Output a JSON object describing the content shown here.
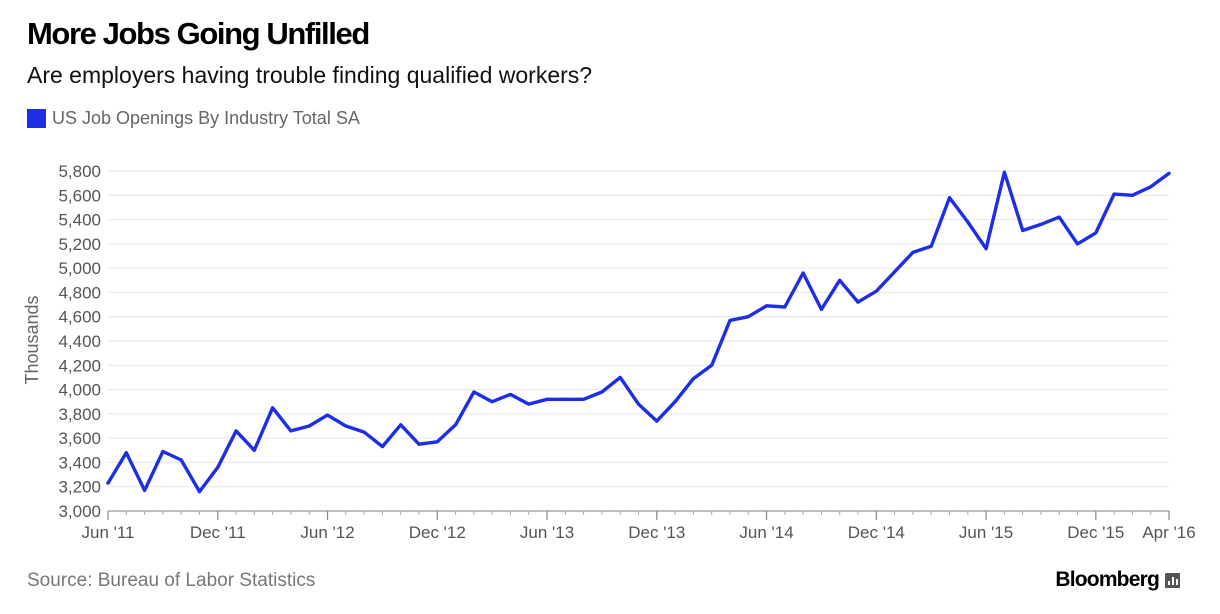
{
  "header": {
    "title": "More Jobs Going Unfilled",
    "subtitle": "Are employers having trouble finding qualified workers?"
  },
  "legend": {
    "label": "US Job Openings By Industry Total SA",
    "color": "#1c2ee6"
  },
  "footer": {
    "source": "Source: Bureau of Labor Statistics",
    "brand": "Bloomberg",
    "brand_icon": "bloomberg-chart-icon"
  },
  "chart_data": {
    "type": "line",
    "ylabel": "Thousands",
    "xlabel": "",
    "ylim": [
      3000,
      5800
    ],
    "yticks": [
      3000,
      3200,
      3400,
      3600,
      3800,
      4000,
      4200,
      4400,
      4600,
      4800,
      5000,
      5200,
      5400,
      5600,
      5800
    ],
    "ytick_labels": [
      "3,000",
      "3,200",
      "3,400",
      "3,600",
      "3,800",
      "4,000",
      "4,200",
      "4,400",
      "4,600",
      "4,800",
      "5,000",
      "5,200",
      "5,400",
      "5,600",
      "5,800"
    ],
    "xticks": [
      "Jun '11",
      "Dec '11",
      "Jun '12",
      "Dec '12",
      "Jun '13",
      "Dec '13",
      "Jun '14",
      "Dec '14",
      "Jun '15",
      "Dec '15",
      "Apr '16"
    ],
    "xtick_months": [
      "2011-06",
      "2011-12",
      "2012-06",
      "2012-12",
      "2013-06",
      "2013-12",
      "2014-06",
      "2014-12",
      "2015-06",
      "2015-12",
      "2016-04"
    ],
    "grid": true,
    "series": [
      {
        "name": "US Job Openings By Industry Total SA",
        "color": "#1c2ee6",
        "x": [
          "2011-06",
          "2011-07",
          "2011-08",
          "2011-09",
          "2011-10",
          "2011-11",
          "2011-12",
          "2012-01",
          "2012-02",
          "2012-03",
          "2012-04",
          "2012-05",
          "2012-06",
          "2012-07",
          "2012-08",
          "2012-09",
          "2012-10",
          "2012-11",
          "2012-12",
          "2013-01",
          "2013-02",
          "2013-03",
          "2013-04",
          "2013-05",
          "2013-06",
          "2013-07",
          "2013-08",
          "2013-09",
          "2013-10",
          "2013-11",
          "2013-12",
          "2014-01",
          "2014-02",
          "2014-03",
          "2014-04",
          "2014-05",
          "2014-06",
          "2014-07",
          "2014-08",
          "2014-09",
          "2014-10",
          "2014-11",
          "2014-12",
          "2015-01",
          "2015-02",
          "2015-03",
          "2015-04",
          "2015-05",
          "2015-06",
          "2015-07",
          "2015-08",
          "2015-09",
          "2015-10",
          "2015-11",
          "2015-12",
          "2016-01",
          "2016-02",
          "2016-03",
          "2016-04"
        ],
        "values": [
          3230,
          3480,
          3170,
          3490,
          3420,
          3160,
          3360,
          3660,
          3500,
          3850,
          3660,
          3700,
          3790,
          3700,
          3650,
          3530,
          3710,
          3550,
          3570,
          3710,
          3980,
          3900,
          3960,
          3880,
          3920,
          3920,
          3920,
          3980,
          4100,
          3880,
          3740,
          3900,
          4090,
          4200,
          4570,
          4600,
          4690,
          4680,
          4960,
          4660,
          4900,
          4720,
          4810,
          4970,
          5130,
          5180,
          5580,
          5380,
          5160,
          5790,
          5310,
          5360,
          5420,
          5200,
          5290,
          5610,
          5600,
          5670,
          5780
        ]
      }
    ]
  }
}
